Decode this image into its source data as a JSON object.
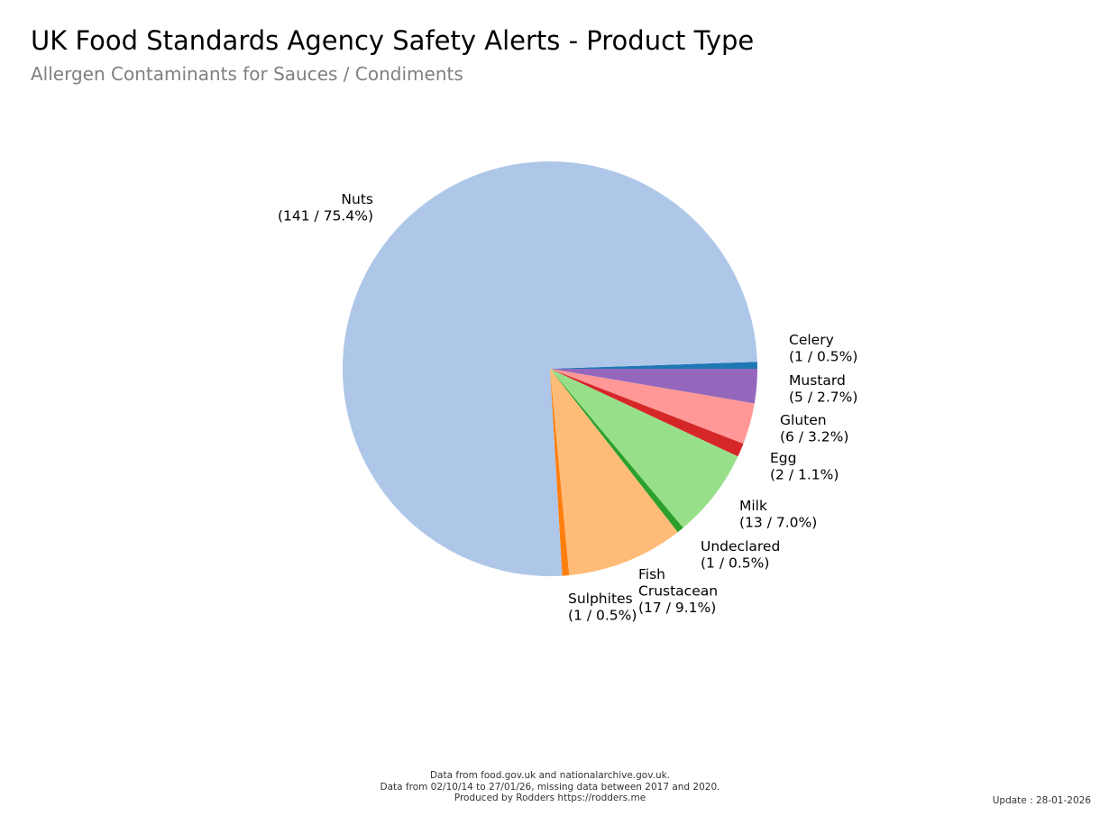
{
  "chart_data": {
    "type": "pie",
    "title": "UK Food Standards Agency Safety Alerts - Product Type",
    "subtitle": "Allergen Contaminants for Sauces / Condiments",
    "slices": [
      {
        "name": "Celery",
        "value": 1,
        "label": [
          "Celery",
          "(1 / 0.5%)"
        ],
        "color": "#1f77b4"
      },
      {
        "name": "Mustard",
        "value": 5,
        "label": [
          "Mustard",
          "(5 / 2.7%)"
        ],
        "color": "#9467bd"
      },
      {
        "name": "Gluten",
        "value": 6,
        "label": [
          "Gluten",
          "(6 / 3.2%)"
        ],
        "color": "#ff9896"
      },
      {
        "name": "Egg",
        "value": 2,
        "label": [
          "Egg",
          "(2 / 1.1%)"
        ],
        "color": "#d62728"
      },
      {
        "name": "Milk",
        "value": 13,
        "label": [
          "Milk",
          "(13 / 7.0%)"
        ],
        "color": "#98df8a"
      },
      {
        "name": "Undeclared",
        "value": 1,
        "label": [
          "Undeclared",
          "(1 / 0.5%)"
        ],
        "color": "#2ca02c"
      },
      {
        "name": "Fish Crustacean",
        "value": 17,
        "label": [
          "Fish",
          "Crustacean",
          "(17 / 9.1%)"
        ],
        "color": "#ffbb78"
      },
      {
        "name": "Sulphites",
        "value": 1,
        "label": [
          "Sulphites",
          "(1 / 0.5%)"
        ],
        "color": "#ff7f0e"
      },
      {
        "name": "Nuts",
        "value": 141,
        "label": [
          "Nuts",
          "(141 / 75.4%)"
        ],
        "color": "#aec7e8"
      }
    ]
  },
  "footer": {
    "lines": [
      "Data from food.gov.uk and nationalarchive.gov.uk.",
      "Data from 02/10/14 to 27/01/26, missing data between 2017 and 2020.",
      "Produced by Rodders https://rodders.me"
    ],
    "update": "Update : 28-01-2026"
  }
}
